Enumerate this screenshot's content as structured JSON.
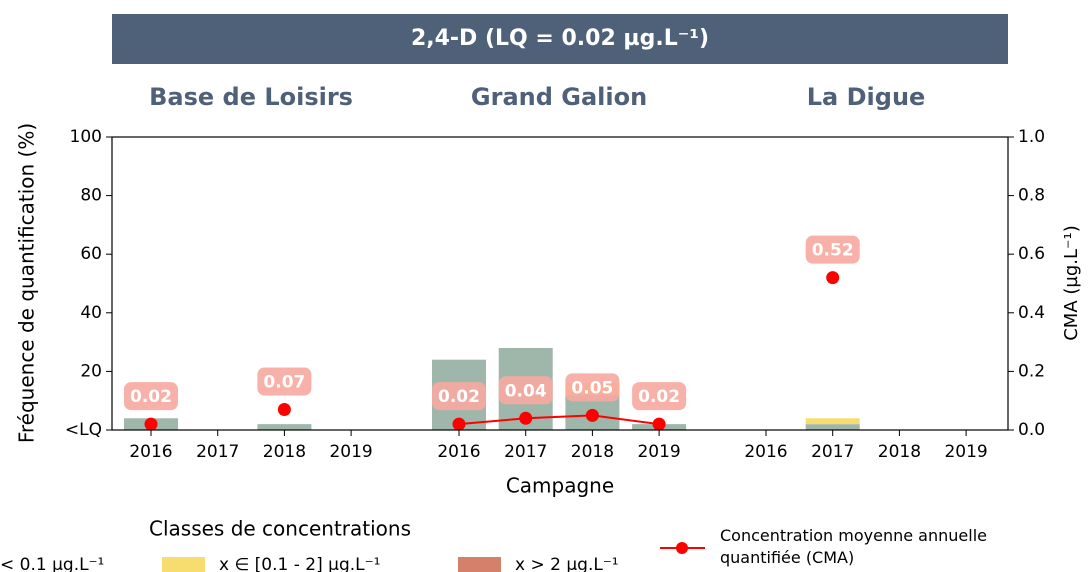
{
  "chart_data": {
    "type": "bar_line",
    "title": "2,4-D (LQ = 0.02 µg.L⁻¹)",
    "groups": [
      {
        "name": "Base de Loisirs",
        "categories": [
          "2016",
          "2017",
          "2018",
          "2019"
        ]
      },
      {
        "name": "Grand Galion",
        "categories": [
          "2016",
          "2017",
          "2018",
          "2019"
        ]
      },
      {
        "name": "La Digue",
        "categories": [
          "2016",
          "2017",
          "2018",
          "2019"
        ]
      }
    ],
    "series": [
      {
        "name": "< 0.1 µg.L⁻¹",
        "color": "#9fb7aa",
        "values": [
          4,
          0,
          2,
          0,
          24,
          28,
          12,
          2,
          0,
          2,
          0,
          0
        ]
      },
      {
        "name": "x ∈ [0.1 - 2] µg.L⁻¹",
        "color": "#f7dc6f",
        "values": [
          0,
          0,
          0,
          0,
          0,
          0,
          4,
          0,
          0,
          2,
          0,
          0
        ]
      },
      {
        "name": "x > 2 µg.L⁻¹",
        "color": "#d4806a",
        "values": [
          0,
          0,
          0,
          0,
          0,
          0,
          0,
          0,
          0,
          0,
          0,
          0
        ]
      },
      {
        "name": "Concentration moyenne annuelle quantifiée (CMA)",
        "color": "#ff0000",
        "axis": "y2",
        "values": [
          0.02,
          null,
          0.07,
          null,
          0.02,
          0.04,
          0.05,
          0.02,
          null,
          0.52,
          null,
          null
        ]
      }
    ],
    "legend_title": "Classes de concentrations",
    "xlabel": "Campagne",
    "ylabel": "Fréquence de quantification (%)",
    "y2label": "CMA (µg.L⁻¹)",
    "ylim": [
      0,
      100
    ],
    "yticks": [
      {
        "value": 0,
        "label": "<LQ"
      },
      20,
      40,
      60,
      80,
      100
    ],
    "y2lim": [
      0,
      1
    ],
    "y2ticks": [
      {
        "value": 0,
        "label": "0.0"
      },
      0.2,
      0.4,
      0.6,
      0.8,
      {
        "value": 1,
        "label": "1.0"
      }
    ]
  }
}
